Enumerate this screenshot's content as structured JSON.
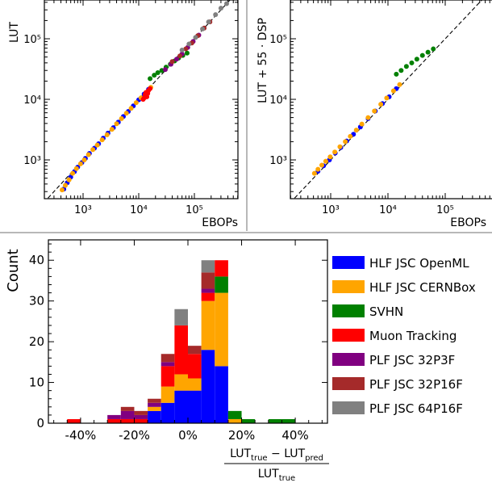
{
  "chart_data": [
    {
      "type": "scatter",
      "panel": "top-left",
      "xlabel": "EBOPs",
      "ylabel": "LUT",
      "xscale": "log",
      "yscale": "log",
      "x_tick_labels": [
        "10³",
        "10⁴",
        "10⁵"
      ],
      "y_tick_labels": [
        "10³",
        "10⁴",
        "10⁵"
      ],
      "reference_line": "y = x (dashed)",
      "series": [
        {
          "legend_index": 0,
          "points": [
            [
              450,
              330
            ],
            [
              520,
              420
            ],
            [
              600,
              520
            ],
            [
              700,
              640
            ],
            [
              800,
              760
            ],
            [
              950,
              900
            ],
            [
              1100,
              1060
            ],
            [
              1300,
              1280
            ],
            [
              1600,
              1560
            ],
            [
              1900,
              1850
            ],
            [
              2300,
              2280
            ],
            [
              2800,
              2760
            ],
            [
              3500,
              3400
            ],
            [
              4300,
              4200
            ],
            [
              5300,
              5200
            ],
            [
              6500,
              6300
            ],
            [
              8000,
              7800
            ],
            [
              10000,
              9800
            ],
            [
              12500,
              12200
            ],
            [
              15000,
              14600
            ]
          ]
        },
        {
          "legend_index": 1,
          "points": [
            [
              420,
              320
            ],
            [
              480,
              380
            ],
            [
              560,
              470
            ],
            [
              650,
              600
            ],
            [
              760,
              720
            ],
            [
              900,
              860
            ],
            [
              1050,
              1000
            ],
            [
              1250,
              1220
            ],
            [
              1500,
              1480
            ],
            [
              1800,
              1760
            ],
            [
              2200,
              2150
            ],
            [
              2700,
              2600
            ],
            [
              3300,
              3200
            ],
            [
              4000,
              3950
            ],
            [
              4900,
              4800
            ],
            [
              6000,
              5900
            ],
            [
              7300,
              7100
            ],
            [
              9000,
              8800
            ],
            [
              11000,
              10600
            ],
            [
              13500,
              13000
            ],
            [
              16500,
              15800
            ]
          ]
        },
        {
          "legend_index": 2,
          "points": [
            [
              16000,
              22000
            ],
            [
              19000,
              25000
            ],
            [
              22000,
              27500
            ],
            [
              26000,
              30000
            ],
            [
              31000,
              34000
            ],
            [
              37000,
              38000
            ],
            [
              44000,
              43000
            ],
            [
              52000,
              48000
            ],
            [
              62000,
              53000
            ],
            [
              74000,
              58000
            ]
          ]
        },
        {
          "legend_index": 3,
          "points": [
            [
              12000,
              10000
            ],
            [
              12500,
              10500
            ],
            [
              13000,
              12000
            ],
            [
              13500,
              13000
            ],
            [
              14000,
              11000
            ],
            [
              14500,
              12500
            ],
            [
              15000,
              14000
            ],
            [
              16000,
              15000
            ]
          ]
        },
        {
          "legend_index": 4,
          "points": [
            [
              30000,
              31000
            ],
            [
              38000,
              38000
            ],
            [
              48000,
              46000
            ],
            [
              60000,
              56000
            ],
            [
              76000,
              72000
            ],
            [
              95000,
              90000
            ],
            [
              120000,
              115000
            ]
          ]
        },
        {
          "legend_index": 5,
          "points": [
            [
              40000,
              42000
            ],
            [
              55000,
              52000
            ],
            [
              70000,
              68000
            ],
            [
              90000,
              85000
            ],
            [
              115000,
              112000
            ],
            [
              150000,
              150000
            ],
            [
              190000,
              190000
            ]
          ]
        },
        {
          "legend_index": 6,
          "points": [
            [
              60000,
              65000
            ],
            [
              80000,
              82000
            ],
            [
              105000,
              105000
            ],
            [
              140000,
              145000
            ],
            [
              180000,
              190000
            ],
            [
              240000,
              250000
            ],
            [
              300000,
              320000
            ],
            [
              380000,
              380000
            ]
          ]
        }
      ]
    },
    {
      "type": "scatter",
      "panel": "top-right",
      "xlabel": "EBOPs",
      "ylabel": "LUT + 55 · DSP",
      "xscale": "log",
      "yscale": "log",
      "x_tick_labels": [
        "10³",
        "10⁴",
        "10⁵"
      ],
      "y_tick_labels": [
        "10³",
        "10⁴",
        "10⁵"
      ],
      "reference_line": "y = x (dashed)",
      "series": [
        {
          "legend_index": 0,
          "points": [
            [
              600,
              650
            ],
            [
              750,
              800
            ],
            [
              950,
              1000
            ],
            [
              1200,
              1300
            ],
            [
              1500,
              1600
            ],
            [
              1900,
              2050
            ],
            [
              2500,
              2650
            ],
            [
              3300,
              3500
            ],
            [
              4500,
              4800
            ],
            [
              6000,
              6400
            ],
            [
              8000,
              8500
            ],
            [
              10500,
              11000
            ],
            [
              14000,
              15000
            ]
          ]
        },
        {
          "legend_index": 1,
          "points": [
            [
              520,
              600
            ],
            [
              600,
              700
            ],
            [
              700,
              820
            ],
            [
              820,
              950
            ],
            [
              980,
              1120
            ],
            [
              1180,
              1350
            ],
            [
              1450,
              1650
            ],
            [
              1800,
              2000
            ],
            [
              2200,
              2450
            ],
            [
              2800,
              3100
            ],
            [
              3500,
              3900
            ],
            [
              4500,
              5000
            ],
            [
              5800,
              6400
            ],
            [
              7500,
              8300
            ],
            [
              9500,
              10500
            ],
            [
              12500,
              13800
            ],
            [
              16000,
              17500
            ]
          ]
        },
        {
          "legend_index": 2,
          "points": [
            [
              14000,
              26000
            ],
            [
              17000,
              30000
            ],
            [
              21000,
              35000
            ],
            [
              26000,
              40000
            ],
            [
              32000,
              46000
            ],
            [
              40000,
              53000
            ],
            [
              50000,
              60000
            ],
            [
              62000,
              68000
            ]
          ]
        }
      ]
    },
    {
      "type": "histogram",
      "panel": "bottom",
      "ylabel": "Count",
      "xlabel_numerator": "LUT",
      "xlabel_numerator_sub1": "true",
      "xlabel_minus": " − ",
      "xlabel_numerator_b": "LUT",
      "xlabel_numerator_sub2": "pred",
      "xlabel_denominator": "LUT",
      "xlabel_denominator_sub": "true",
      "x_tick_labels": [
        "-40%",
        "-20%",
        "0%",
        "20%",
        "40%"
      ],
      "x_ticks": [
        -40,
        -20,
        0,
        20,
        40
      ],
      "xlim": [
        -52,
        52
      ],
      "y_tick_labels": [
        "0",
        "10",
        "20",
        "30",
        "40"
      ],
      "y_ticks": [
        0,
        10,
        20,
        30,
        40
      ],
      "ylim": [
        0,
        45
      ],
      "bin_edges": [
        -45,
        -40,
        -35,
        -30,
        -25,
        -20,
        -15,
        -10,
        -5,
        0,
        5,
        10,
        15,
        20,
        25,
        30,
        35,
        40
      ],
      "stacked": true,
      "series": [
        {
          "name": "HLF JSC OpenML",
          "color": "#0000ff",
          "values": [
            0,
            0,
            0,
            0,
            0,
            0,
            3,
            5,
            8,
            8,
            18,
            14,
            0,
            0,
            0,
            0,
            0
          ]
        },
        {
          "name": "HLF JSC CERNBox",
          "color": "#ffa500",
          "values": [
            0,
            0,
            0,
            0,
            0,
            0,
            1,
            4,
            4,
            3,
            12,
            18,
            1,
            0,
            0,
            0,
            0
          ]
        },
        {
          "name": "SVHN",
          "color": "#008000",
          "values": [
            0,
            0,
            0,
            0,
            0,
            0,
            0,
            0,
            0,
            0,
            0,
            4,
            2,
            1,
            0,
            1,
            1
          ]
        },
        {
          "name": "Muon Tracking",
          "color": "#ff0000",
          "values": [
            1,
            0,
            0,
            1,
            1,
            1,
            0,
            5,
            12,
            6,
            2,
            4,
            0,
            0,
            0,
            0,
            0
          ]
        },
        {
          "name": "PLF JSC 32P3F",
          "color": "#800080",
          "values": [
            0,
            0,
            0,
            1,
            2,
            1,
            1,
            1,
            0,
            0,
            1,
            0,
            0,
            0,
            0,
            0,
            0
          ]
        },
        {
          "name": "PLF JSC 32P16F",
          "color": "#a52a2a",
          "values": [
            0,
            0,
            0,
            0,
            1,
            1,
            1,
            2,
            0,
            2,
            4,
            0,
            0,
            0,
            0,
            0,
            0
          ]
        },
        {
          "name": "PLF JSC 64P16F",
          "color": "#808080",
          "values": [
            0,
            0,
            0,
            0,
            0,
            0,
            0,
            0,
            4,
            0,
            3,
            0,
            0,
            0,
            0,
            0,
            0
          ]
        }
      ],
      "legend_placement": "right"
    }
  ]
}
